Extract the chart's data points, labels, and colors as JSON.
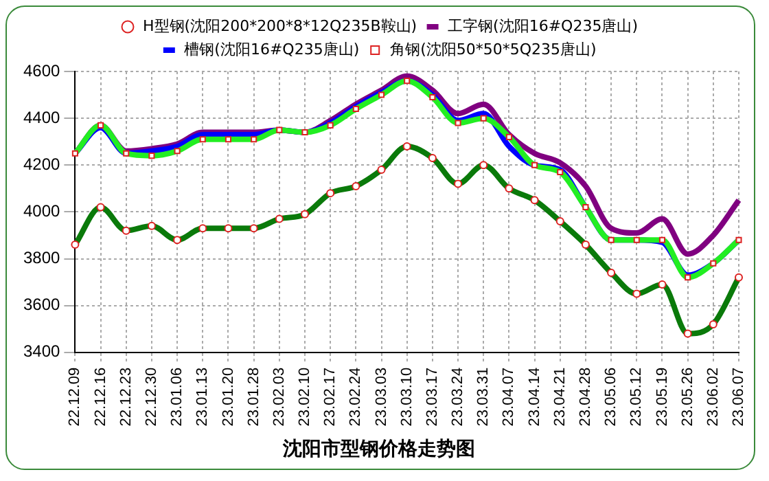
{
  "chart_data": {
    "type": "line",
    "title": "沈阳市型钢价格走势图",
    "categories": [
      "22.12.09",
      "22.12.16",
      "22.12.23",
      "22.12.30",
      "23.01.06",
      "23.01.13",
      "23.01.20",
      "23.01.28",
      "23.02.03",
      "23.02.10",
      "23.02.17",
      "23.02.24",
      "23.03.03",
      "23.03.10",
      "23.03.17",
      "23.03.24",
      "23.03.31",
      "23.04.07",
      "23.04.14",
      "23.04.21",
      "23.04.28",
      "23.05.06",
      "23.05.12",
      "23.05.19",
      "23.05.26",
      "23.06.02",
      "23.06.07"
    ],
    "series": [
      {
        "name": "H型钢(沈阳200*200*8*12Q235B鞍山)",
        "color": "#0a7a0a",
        "marker": "circle",
        "values": [
          3860,
          4020,
          3920,
          3940,
          3880,
          3930,
          3930,
          3930,
          3970,
          3990,
          4080,
          4110,
          4180,
          4280,
          4230,
          4120,
          4200,
          4100,
          4050,
          3960,
          3860,
          3740,
          3650,
          3690,
          3480,
          3520,
          3720
        ]
      },
      {
        "name": "工字钢(沈阳16#Q235唐山)",
        "color": "#800080",
        "marker": "none",
        "values": [
          4250,
          4370,
          4260,
          4270,
          4290,
          4340,
          4340,
          4340,
          4350,
          4340,
          4390,
          4460,
          4520,
          4580,
          4520,
          4420,
          4460,
          4330,
          4250,
          4210,
          4110,
          3930,
          3910,
          3970,
          3820,
          3900,
          4050
        ]
      },
      {
        "name": "槽钢(沈阳16#Q235唐山)",
        "color": "#0000ff",
        "marker": "none",
        "values": [
          4250,
          4360,
          4250,
          4260,
          4280,
          4330,
          4330,
          4330,
          4350,
          4340,
          4380,
          4450,
          4510,
          4560,
          4500,
          4390,
          4420,
          4280,
          4200,
          4180,
          4020,
          3880,
          3880,
          3870,
          3730,
          3780,
          3880
        ]
      },
      {
        "name": "角钢(沈阳50*50*5Q235唐山)",
        "color": "#22ee22",
        "marker": "square",
        "values": [
          4250,
          4370,
          4250,
          4240,
          4260,
          4310,
          4310,
          4310,
          4350,
          4340,
          4370,
          4440,
          4500,
          4560,
          4490,
          4380,
          4400,
          4320,
          4200,
          4170,
          4020,
          3880,
          3880,
          3880,
          3720,
          3780,
          3880
        ]
      }
    ],
    "ylim": [
      3400,
      4600
    ],
    "yticks": [
      3400,
      3600,
      3800,
      4000,
      4200,
      4400,
      4600
    ],
    "grid": true,
    "legend": "top",
    "line_style": "solid"
  }
}
